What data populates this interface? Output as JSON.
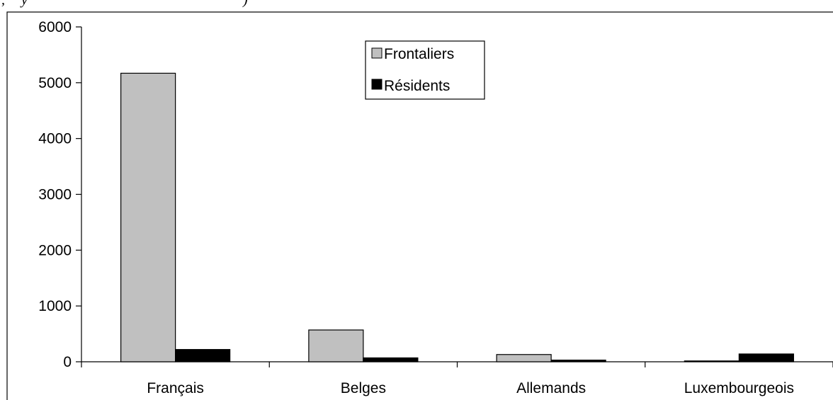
{
  "chart_data": {
    "type": "bar",
    "categories": [
      "Français",
      "Belges",
      "Allemands",
      "Luxembourgeois"
    ],
    "series": [
      {
        "name": "Frontaliers",
        "values": [
          5170,
          570,
          130,
          15
        ],
        "color": "#c0c0c0"
      },
      {
        "name": "Résidents",
        "values": [
          220,
          70,
          30,
          140
        ],
        "color": "#000000"
      }
    ],
    "ylim": [
      0,
      6000
    ],
    "yticks": [
      0,
      1000,
      2000,
      3000,
      4000,
      5000,
      6000
    ],
    "grid": false,
    "legend_position": "top-center"
  }
}
